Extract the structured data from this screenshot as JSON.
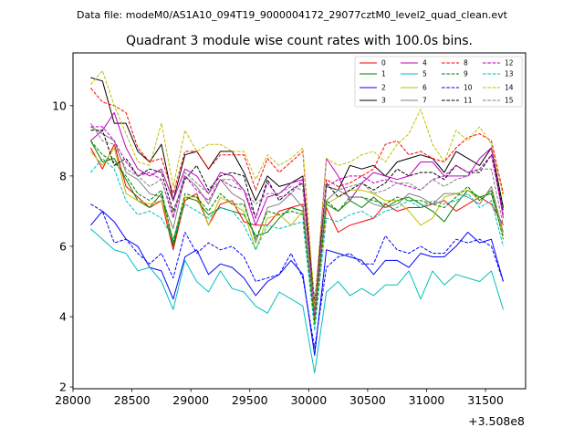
{
  "chart_data": {
    "type": "line",
    "suptitle": "Data file: modeM0/AS1A10_094T19_9000004172_29077cztM0_level2_quad_clean.evt",
    "title": "Quadrant 3 module wise count rates with 100.0s bins.",
    "xlabel": "",
    "ylabel": "",
    "x_offset_label": "+3.508e8",
    "xlim": [
      28000,
      31840
    ],
    "ylim": [
      1.95,
      11.5
    ],
    "x_ticks": [
      28000,
      28500,
      29000,
      29500,
      30000,
      30500,
      31000,
      31500
    ],
    "x_tick_labels": [
      "28000",
      "28500",
      "29000",
      "29500",
      "30000",
      "30500",
      "31000",
      "31500"
    ],
    "y_ticks": [
      2,
      4,
      6,
      8,
      10
    ],
    "y_tick_labels": [
      "2",
      "4",
      "6",
      "8",
      "10"
    ],
    "x": [
      28150,
      28250,
      28350,
      28450,
      28550,
      28650,
      28750,
      28850,
      28950,
      29050,
      29150,
      29250,
      29350,
      29450,
      29550,
      29650,
      29750,
      29850,
      29950,
      30050,
      30150,
      30250,
      30350,
      30450,
      30550,
      30650,
      30750,
      30850,
      30950,
      31050,
      31150,
      31250,
      31350,
      31450,
      31550,
      31650
    ],
    "series": [
      {
        "name": "0",
        "color": "#ff0000",
        "dash": "solid",
        "values": [
          8.8,
          8.2,
          8.9,
          7.7,
          7.4,
          7.1,
          7.3,
          5.9,
          7.3,
          7.5,
          6.6,
          7.2,
          7.3,
          6.7,
          6.6,
          6.6,
          7.0,
          7.1,
          7.2,
          3.9,
          7.1,
          6.4,
          6.6,
          6.7,
          6.8,
          7.2,
          7.0,
          7.1,
          7.1,
          7.2,
          7.3,
          7.0,
          7.2,
          7.4,
          7.2,
          6.6
        ]
      },
      {
        "name": "1",
        "color": "#008000",
        "dash": "solid",
        "values": [
          9.0,
          8.4,
          8.5,
          7.9,
          7.3,
          7.1,
          7.5,
          6.0,
          7.4,
          7.3,
          6.9,
          7.1,
          7.0,
          6.9,
          6.3,
          6.4,
          6.8,
          7.1,
          7.0,
          4.0,
          7.2,
          7.0,
          7.3,
          7.1,
          7.4,
          7.1,
          7.3,
          7.4,
          7.2,
          7.0,
          6.7,
          7.2,
          7.6,
          7.4,
          7.5,
          6.3
        ]
      },
      {
        "name": "2",
        "color": "#0000ff",
        "dash": "solid",
        "values": [
          6.6,
          7.0,
          6.7,
          6.2,
          6.0,
          5.4,
          5.3,
          4.5,
          5.7,
          5.9,
          5.2,
          5.5,
          5.4,
          5.1,
          4.6,
          5.0,
          5.2,
          5.6,
          5.2,
          2.9,
          5.9,
          5.8,
          5.7,
          5.6,
          5.2,
          5.6,
          5.6,
          5.4,
          5.8,
          5.7,
          5.7,
          6.0,
          6.4,
          6.1,
          6.2,
          5.0
        ]
      },
      {
        "name": "3",
        "color": "#000000",
        "dash": "solid",
        "values": [
          10.8,
          10.7,
          9.5,
          9.5,
          8.7,
          8.4,
          8.9,
          7.3,
          8.6,
          8.7,
          8.2,
          8.7,
          8.7,
          8.1,
          7.3,
          8.0,
          7.7,
          7.8,
          8.0,
          4.4,
          7.7,
          7.6,
          8.3,
          8.2,
          8.3,
          8.0,
          8.4,
          8.5,
          8.6,
          8.5,
          8.1,
          8.7,
          8.5,
          8.3,
          8.8,
          7.1
        ]
      },
      {
        "name": "4",
        "color": "#bf00bf",
        "dash": "solid",
        "values": [
          9.0,
          9.3,
          9.8,
          8.8,
          8.2,
          8.0,
          8.2,
          7.3,
          8.2,
          8.0,
          7.5,
          8.1,
          8.0,
          7.6,
          6.6,
          7.4,
          7.5,
          7.8,
          7.9,
          4.2,
          8.5,
          8.0,
          7.3,
          7.8,
          8.1,
          8.0,
          7.9,
          8.0,
          8.4,
          8.4,
          8.0,
          8.0,
          8.0,
          8.5,
          8.8,
          6.8
        ]
      },
      {
        "name": "5",
        "color": "#00bfbf",
        "dash": "solid",
        "values": [
          6.5,
          6.2,
          5.9,
          5.8,
          5.3,
          5.4,
          5.0,
          4.2,
          5.6,
          5.0,
          4.7,
          5.3,
          4.8,
          4.7,
          4.3,
          4.1,
          4.7,
          4.5,
          4.3,
          2.4,
          4.7,
          5.0,
          4.6,
          4.8,
          4.6,
          4.9,
          4.9,
          5.3,
          4.5,
          5.3,
          4.9,
          5.2,
          5.1,
          5.0,
          5.3,
          4.2
        ]
      },
      {
        "name": "6",
        "color": "#bfbf00",
        "dash": "solid",
        "values": [
          8.7,
          8.3,
          8.8,
          7.5,
          7.3,
          7.2,
          7.3,
          6.2,
          7.4,
          7.4,
          6.6,
          7.4,
          7.2,
          7.0,
          5.9,
          6.8,
          6.9,
          6.6,
          7.0,
          3.8,
          7.2,
          7.4,
          7.6,
          7.6,
          7.5,
          7.3,
          7.3,
          7.0,
          6.6,
          6.8,
          7.4,
          7.5,
          7.6,
          7.3,
          7.6,
          6.3
        ]
      },
      {
        "name": "7",
        "color": "#808080",
        "dash": "solid",
        "values": [
          9.4,
          9.2,
          9.0,
          8.1,
          7.9,
          7.5,
          7.4,
          6.5,
          8.0,
          7.7,
          7.2,
          7.9,
          7.5,
          7.3,
          6.1,
          7.1,
          7.2,
          7.5,
          7.1,
          4.0,
          7.3,
          7.6,
          7.4,
          7.4,
          7.2,
          7.1,
          7.2,
          7.5,
          7.4,
          7.2,
          7.5,
          7.5,
          7.4,
          7.2,
          7.7,
          6.4
        ]
      },
      {
        "name": "8",
        "color": "#ff0000",
        "dash": "dashed",
        "values": [
          10.5,
          10.1,
          10.0,
          9.8,
          8.8,
          8.4,
          8.5,
          7.5,
          8.7,
          8.7,
          8.2,
          8.6,
          8.6,
          8.6,
          7.6,
          8.5,
          8.1,
          8.4,
          8.7,
          4.1,
          7.9,
          7.7,
          7.8,
          8.0,
          8.2,
          8.9,
          9.0,
          8.6,
          8.7,
          8.5,
          8.4,
          8.8,
          9.1,
          9.2,
          9.0,
          7.5
        ]
      },
      {
        "name": "9",
        "color": "#008000",
        "dash": "dashed",
        "values": [
          9.0,
          8.6,
          8.4,
          8.0,
          7.5,
          7.3,
          7.6,
          6.1,
          7.5,
          7.4,
          7.0,
          7.5,
          7.2,
          7.2,
          6.2,
          7.0,
          6.9,
          7.0,
          6.9,
          3.8,
          7.3,
          7.0,
          7.4,
          7.4,
          7.3,
          7.2,
          7.4,
          7.3,
          7.3,
          7.2,
          7.1,
          7.4,
          7.7,
          7.3,
          7.6,
          6.2
        ]
      },
      {
        "name": "10",
        "color": "#0000ff",
        "dash": "dashed",
        "values": [
          7.2,
          7.0,
          6.1,
          6.2,
          5.8,
          5.5,
          5.8,
          5.1,
          6.4,
          5.8,
          6.1,
          5.9,
          6.0,
          5.7,
          5.0,
          5.1,
          5.2,
          5.8,
          5.1,
          3.1,
          5.4,
          5.7,
          5.8,
          5.5,
          5.5,
          6.3,
          5.9,
          5.8,
          6.0,
          5.8,
          5.8,
          6.2,
          6.1,
          6.2,
          6.0,
          5.0
        ]
      },
      {
        "name": "11",
        "color": "#000000",
        "dash": "dashed",
        "values": [
          9.3,
          9.3,
          8.3,
          8.5,
          8.0,
          8.2,
          8.1,
          7.0,
          7.9,
          8.3,
          7.6,
          8.0,
          8.1,
          8.0,
          6.8,
          7.9,
          7.3,
          7.6,
          7.8,
          4.3,
          7.8,
          7.4,
          7.6,
          7.8,
          7.6,
          7.8,
          8.2,
          8.0,
          8.1,
          8.1,
          7.9,
          8.3,
          8.1,
          8.1,
          8.6,
          7.0
        ]
      },
      {
        "name": "12",
        "color": "#bf00bf",
        "dash": "dashed",
        "values": [
          9.4,
          9.4,
          9.0,
          8.4,
          8.0,
          8.1,
          7.9,
          6.8,
          8.0,
          7.6,
          7.3,
          7.9,
          7.7,
          7.6,
          6.8,
          7.8,
          7.4,
          7.5,
          7.9,
          4.0,
          7.7,
          7.9,
          8.0,
          8.0,
          7.8,
          7.9,
          7.8,
          7.7,
          7.6,
          7.9,
          8.0,
          8.3,
          8.1,
          8.2,
          8.6,
          6.9
        ]
      },
      {
        "name": "13",
        "color": "#00bfbf",
        "dash": "dashed",
        "values": [
          8.1,
          8.5,
          8.2,
          7.3,
          6.9,
          7.0,
          6.8,
          6.2,
          7.2,
          7.0,
          6.8,
          7.1,
          7.0,
          6.6,
          5.9,
          6.6,
          6.5,
          6.6,
          6.7,
          3.6,
          6.8,
          6.7,
          6.9,
          7.0,
          6.8,
          7.0,
          7.1,
          7.3,
          7.1,
          7.3,
          7.2,
          7.3,
          7.5,
          7.1,
          7.3,
          6.0
        ]
      },
      {
        "name": "14",
        "color": "#bfbf00",
        "dash": "dashed",
        "values": [
          10.6,
          11.0,
          10.0,
          9.2,
          8.4,
          8.3,
          9.5,
          7.7,
          9.3,
          8.7,
          8.9,
          8.9,
          8.7,
          8.7,
          7.9,
          8.6,
          8.3,
          8.5,
          8.8,
          4.3,
          8.5,
          8.3,
          8.4,
          8.6,
          8.7,
          8.4,
          8.9,
          9.2,
          9.9,
          8.9,
          8.4,
          9.3,
          9.0,
          9.4,
          8.9,
          7.4
        ]
      },
      {
        "name": "15",
        "color": "#808080",
        "dash": "dashed",
        "values": [
          9.5,
          9.0,
          8.9,
          8.2,
          8.0,
          7.7,
          7.9,
          6.9,
          8.1,
          7.8,
          7.5,
          7.9,
          7.9,
          7.6,
          7.2,
          7.5,
          7.5,
          7.7,
          7.6,
          4.1,
          7.7,
          7.6,
          7.7,
          7.8,
          7.5,
          7.6,
          7.8,
          7.8,
          7.6,
          7.9,
          7.7,
          7.9,
          8.0,
          8.2,
          8.2,
          6.6
        ]
      }
    ],
    "legend_position": "upper-right",
    "grid": false
  }
}
